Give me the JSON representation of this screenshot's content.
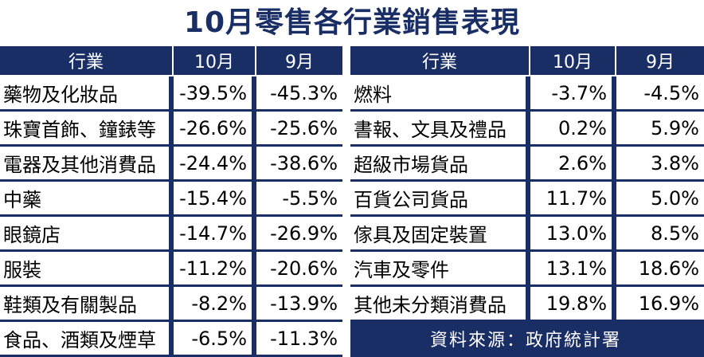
{
  "title": "10月零售各行業銷售表現",
  "headers": {
    "category": "行業",
    "oct": "10月",
    "sep": "9月"
  },
  "left_rows": [
    {
      "name": "藥物及化妝品",
      "oct": "-39.5%",
      "sep": "-45.3%"
    },
    {
      "name": "珠寶首飾、鐘錶等",
      "oct": "-26.6%",
      "sep": "-25.6%"
    },
    {
      "name": "電器及其他消費品",
      "oct": "-24.4%",
      "sep": "-38.6%"
    },
    {
      "name": "中藥",
      "oct": "-15.4%",
      "sep": "-5.5%"
    },
    {
      "name": "眼鏡店",
      "oct": "-14.7%",
      "sep": "-26.9%"
    },
    {
      "name": "服裝",
      "oct": "-11.2%",
      "sep": "-20.6%"
    },
    {
      "name": "鞋類及有關製品",
      "oct": "-8.2%",
      "sep": "-13.9%"
    },
    {
      "name": "食品、酒類及煙草",
      "oct": "-6.5%",
      "sep": "-11.3%"
    }
  ],
  "right_rows": [
    {
      "name": "燃料",
      "oct": "-3.7%",
      "sep": "-4.5%"
    },
    {
      "name": "書報、文具及禮品",
      "oct": "0.2%",
      "sep": "5.9%"
    },
    {
      "name": "超級市場貨品",
      "oct": "2.6%",
      "sep": "3.8%"
    },
    {
      "name": "百貨公司貨品",
      "oct": "11.7%",
      "sep": "5.0%"
    },
    {
      "name": "傢具及固定裝置",
      "oct": "13.0%",
      "sep": "8.5%"
    },
    {
      "name": "汽車及零件",
      "oct": "13.1%",
      "sep": "18.6%"
    },
    {
      "name": "其他未分類消費品",
      "oct": "19.8%",
      "sep": "16.9%"
    }
  ],
  "source": "資料來源：政府統計署",
  "colors": {
    "header_bg": "#1a2e66",
    "title": "#1a2e66"
  }
}
